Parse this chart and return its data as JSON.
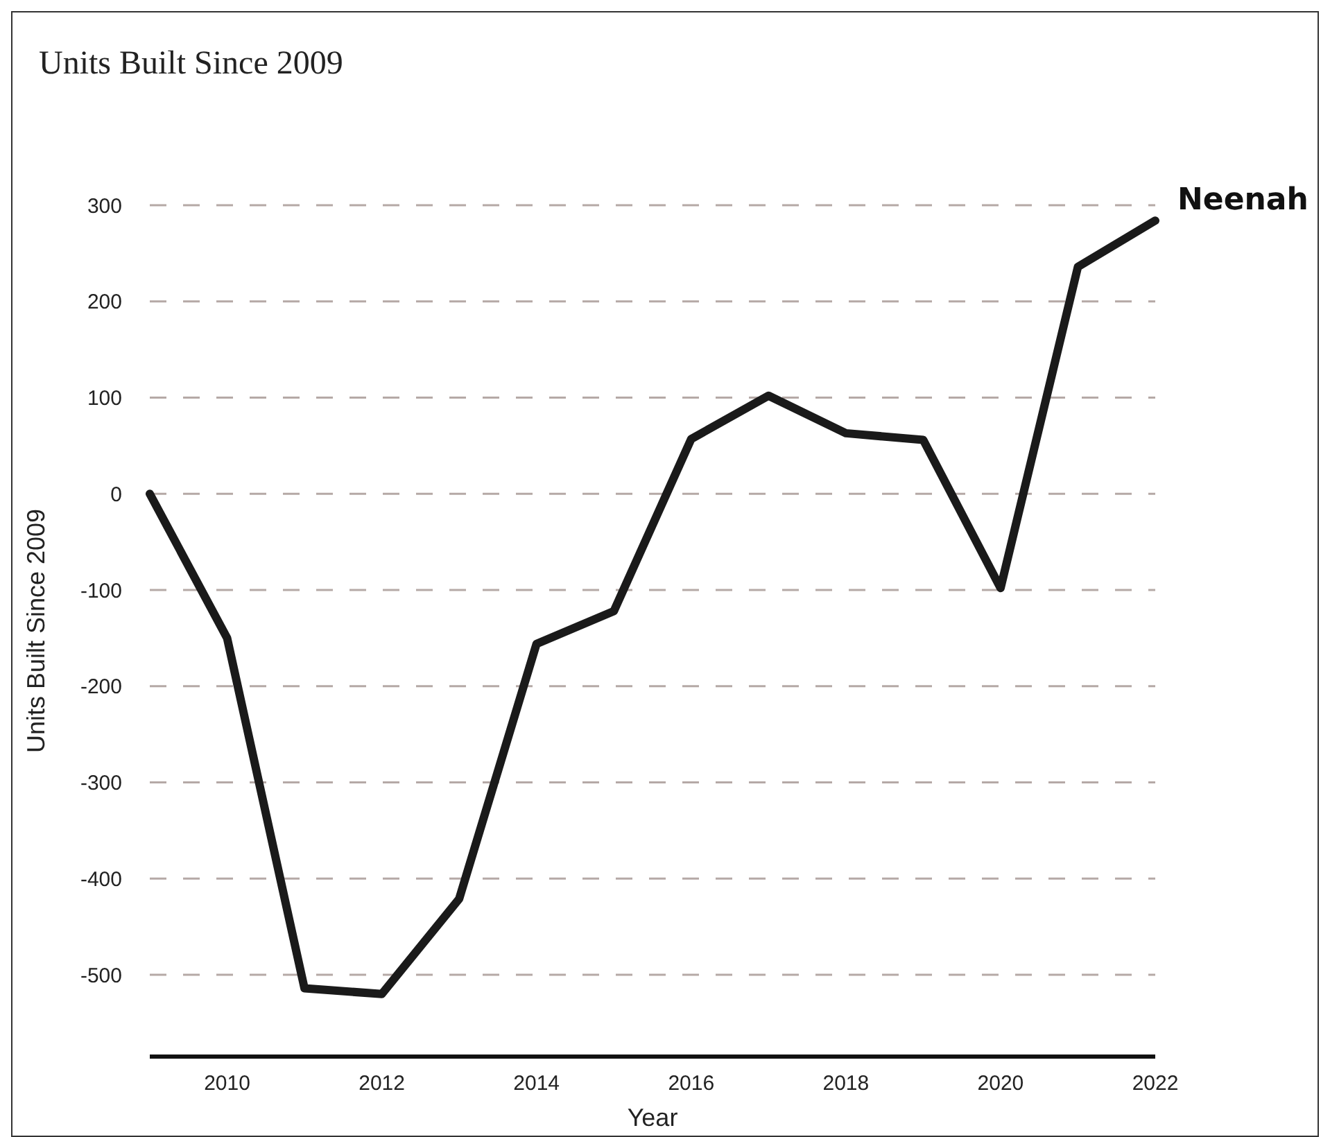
{
  "chart_data": {
    "type": "line",
    "title": "Units Built Since 2009",
    "xlabel": "Year",
    "ylabel": "Units Built Since 2009",
    "x": [
      2009,
      2010,
      2011,
      2012,
      2013,
      2014,
      2015,
      2016,
      2017,
      2018,
      2019,
      2020,
      2021,
      2022
    ],
    "series": [
      {
        "name": "Neenah",
        "color": "#1a1a1a",
        "values": [
          0,
          -150,
          -514,
          -520,
          -421,
          -156,
          -122,
          57,
          102,
          63,
          56,
          -98,
          236,
          284
        ]
      }
    ],
    "xlim": [
      2009,
      2022
    ],
    "xticks": [
      2010,
      2012,
      2014,
      2016,
      2018,
      2020,
      2022
    ],
    "ylim": [
      -585,
      300
    ],
    "yticks": [
      -500,
      -400,
      -300,
      -200,
      -100,
      0,
      100,
      200,
      300
    ],
    "grid": "y",
    "marker": "none",
    "line_style": "solid"
  }
}
